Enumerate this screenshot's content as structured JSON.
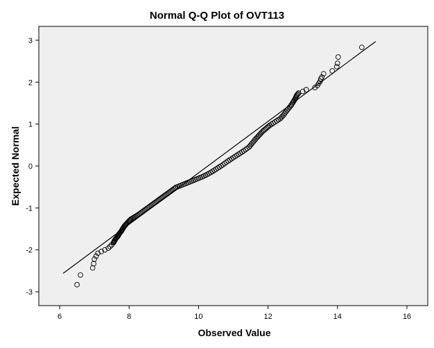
{
  "chart_data": {
    "type": "scatter",
    "title": "Normal Q-Q Plot of OVT113",
    "xlabel": "Observed Value",
    "ylabel": "Expected Normal",
    "xlim": [
      5.4,
      16.6
    ],
    "ylim": [
      -3.33,
      3.33
    ],
    "x_ticks": [
      6,
      8,
      10,
      12,
      14,
      16
    ],
    "y_ticks": [
      -3,
      -2,
      -1,
      0,
      1,
      2,
      3
    ],
    "grid": false,
    "legend": "none",
    "reference_line": {
      "x": [
        6.1,
        15.1
      ],
      "y": [
        -2.56,
        2.97
      ]
    },
    "series": [
      {
        "marker": "open-circle",
        "points": [
          [
            6.5,
            -2.83
          ],
          [
            6.6,
            -2.6
          ],
          [
            6.95,
            -2.43
          ],
          [
            6.98,
            -2.33
          ],
          [
            7.0,
            -2.22
          ],
          [
            7.05,
            -2.15
          ],
          [
            7.1,
            -2.08
          ],
          [
            7.2,
            -2.04
          ],
          [
            7.3,
            -2.0
          ],
          [
            7.4,
            -1.96
          ],
          [
            7.45,
            -1.92
          ],
          [
            7.5,
            -1.88
          ],
          [
            7.55,
            -1.83
          ],
          [
            7.58,
            -1.78
          ],
          [
            7.62,
            -1.73
          ],
          [
            7.68,
            -1.67
          ],
          [
            7.72,
            -1.61
          ],
          [
            7.78,
            -1.55
          ],
          [
            7.82,
            -1.49
          ],
          [
            7.87,
            -1.43
          ],
          [
            7.92,
            -1.38
          ],
          [
            7.98,
            -1.33
          ],
          [
            8.05,
            -1.27
          ],
          [
            8.15,
            -1.22
          ],
          [
            8.25,
            -1.17
          ],
          [
            8.35,
            -1.11
          ],
          [
            8.45,
            -1.05
          ],
          [
            8.55,
            -0.99
          ],
          [
            8.65,
            -0.93
          ],
          [
            8.75,
            -0.87
          ],
          [
            8.85,
            -0.81
          ],
          [
            8.95,
            -0.75
          ],
          [
            9.05,
            -0.69
          ],
          [
            9.15,
            -0.63
          ],
          [
            9.25,
            -0.57
          ],
          [
            9.35,
            -0.51
          ],
          [
            9.5,
            -0.46
          ],
          [
            9.65,
            -0.41
          ],
          [
            9.8,
            -0.36
          ],
          [
            9.95,
            -0.31
          ],
          [
            10.1,
            -0.26
          ],
          [
            10.25,
            -0.2
          ],
          [
            10.4,
            -0.13
          ],
          [
            10.55,
            -0.05
          ],
          [
            10.7,
            0.03
          ],
          [
            10.85,
            0.12
          ],
          [
            11.0,
            0.2
          ],
          [
            11.15,
            0.28
          ],
          [
            11.3,
            0.36
          ],
          [
            11.45,
            0.45
          ],
          [
            11.55,
            0.55
          ],
          [
            11.65,
            0.65
          ],
          [
            11.75,
            0.74
          ],
          [
            11.85,
            0.83
          ],
          [
            11.95,
            0.9
          ],
          [
            12.05,
            0.97
          ],
          [
            12.2,
            1.05
          ],
          [
            12.35,
            1.13
          ],
          [
            12.45,
            1.22
          ],
          [
            12.55,
            1.33
          ],
          [
            12.65,
            1.43
          ],
          [
            12.72,
            1.52
          ],
          [
            12.78,
            1.6
          ],
          [
            12.82,
            1.68
          ],
          [
            12.88,
            1.74
          ],
          [
            13.0,
            1.78
          ],
          [
            13.1,
            1.82
          ],
          [
            13.35,
            1.87
          ],
          [
            13.42,
            1.92
          ],
          [
            13.46,
            1.97
          ],
          [
            13.5,
            2.02
          ],
          [
            13.52,
            2.08
          ],
          [
            13.55,
            2.12
          ],
          [
            13.6,
            2.2
          ],
          [
            13.85,
            2.27
          ],
          [
            13.98,
            2.37
          ],
          [
            14.0,
            2.45
          ],
          [
            14.02,
            2.6
          ],
          [
            14.7,
            2.83
          ]
        ],
        "fill_points": [
          [
            7.65,
            -1.72
          ],
          [
            7.8,
            -1.55
          ],
          [
            8.0,
            -1.3
          ],
          [
            8.2,
            -1.2
          ],
          [
            8.4,
            -1.08
          ],
          [
            8.6,
            -0.96
          ],
          [
            8.8,
            -0.84
          ],
          [
            9.0,
            -0.72
          ],
          [
            9.2,
            -0.6
          ],
          [
            9.4,
            -0.49
          ],
          [
            9.6,
            -0.43
          ],
          [
            9.9,
            -0.33
          ],
          [
            10.2,
            -0.22
          ],
          [
            10.5,
            -0.08
          ],
          [
            10.8,
            0.09
          ],
          [
            11.1,
            0.25
          ],
          [
            11.4,
            0.42
          ],
          [
            11.7,
            0.7
          ],
          [
            12.0,
            0.94
          ],
          [
            12.3,
            1.1
          ],
          [
            12.6,
            1.38
          ],
          [
            12.8,
            1.65
          ]
        ]
      }
    ]
  }
}
